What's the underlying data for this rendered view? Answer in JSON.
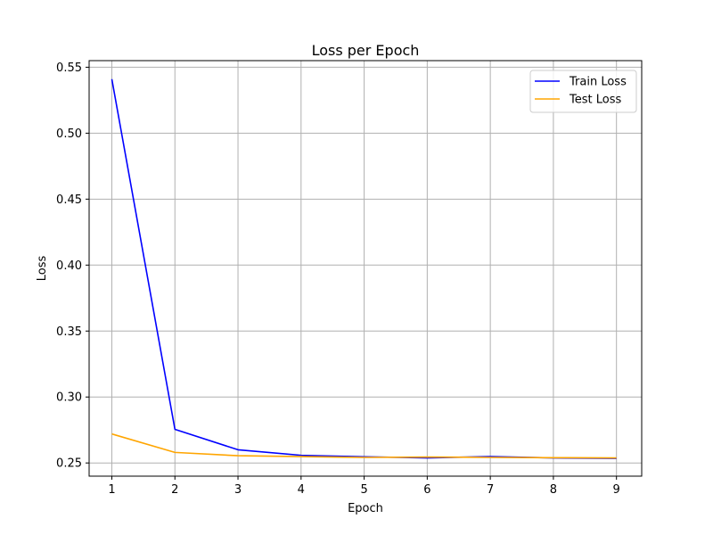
{
  "chart_data": {
    "type": "line",
    "title": "Loss per Epoch",
    "xlabel": "Epoch",
    "ylabel": "Loss",
    "x": [
      1,
      2,
      3,
      4,
      5,
      6,
      7,
      8,
      9
    ],
    "xlim": [
      0.64,
      9.4
    ],
    "ylim": [
      0.24,
      0.555
    ],
    "xticks": [
      1,
      2,
      3,
      4,
      5,
      6,
      7,
      8,
      9
    ],
    "yticks": [
      0.25,
      0.3,
      0.35,
      0.4,
      0.45,
      0.5,
      0.55
    ],
    "ytick_labels": [
      "0.25",
      "0.30",
      "0.35",
      "0.40",
      "0.45",
      "0.50",
      "0.55"
    ],
    "grid": true,
    "legend_position": "top-right",
    "series": [
      {
        "name": "Train Loss",
        "color": "#0000ff",
        "values": [
          0.541,
          0.2755,
          0.26,
          0.2558,
          0.2547,
          0.2538,
          0.2548,
          0.2538,
          0.2535
        ]
      },
      {
        "name": "Test Loss",
        "color": "#ffa500",
        "values": [
          0.272,
          0.258,
          0.2555,
          0.2548,
          0.2542,
          0.2545,
          0.2542,
          0.254,
          0.2538
        ]
      }
    ]
  }
}
